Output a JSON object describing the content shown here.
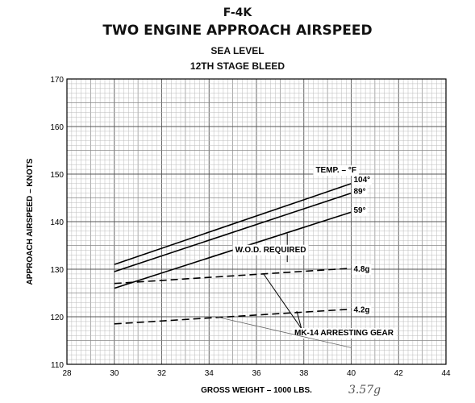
{
  "header": {
    "title_line1": "F-4K",
    "title_line2": "TWO ENGINE APPROACH AIRSPEED",
    "subtitle_line1": "SEA LEVEL",
    "subtitle_line2": "12TH STAGE BLEED"
  },
  "chart_data": {
    "type": "line",
    "xlabel": "GROSS WEIGHT – 1000 LBS.",
    "ylabel": "APPROACH AIRSPEED – KNOTS",
    "xlim": [
      28,
      44
    ],
    "ylim": [
      110,
      170
    ],
    "x_ticks": [
      28,
      30,
      32,
      34,
      36,
      38,
      40,
      42,
      44
    ],
    "y_ticks": [
      110,
      120,
      130,
      140,
      150,
      160,
      170
    ],
    "grid": true,
    "legend_title": "TEMP. – °F",
    "series": [
      {
        "name": "104°",
        "style": "solid",
        "x": [
          30,
          40
        ],
        "y": [
          131,
          148
        ]
      },
      {
        "name": "89°",
        "style": "solid",
        "x": [
          30,
          40
        ],
        "y": [
          129.5,
          146
        ]
      },
      {
        "name": "59°",
        "style": "solid",
        "x": [
          30,
          40
        ],
        "y": [
          126,
          142
        ]
      },
      {
        "name": "4.8g",
        "style": "dashed",
        "x": [
          30,
          40
        ],
        "y": [
          127,
          130.2
        ]
      },
      {
        "name": "4.2g",
        "style": "dashed",
        "x": [
          30,
          40
        ],
        "y": [
          118.5,
          121.6
        ]
      }
    ],
    "annotations": {
      "wod": "W.O.D. REQUIRED",
      "arresting_gear": "MK-14 ARRESTING GEAR",
      "handwritten_note": "3.57g"
    }
  }
}
